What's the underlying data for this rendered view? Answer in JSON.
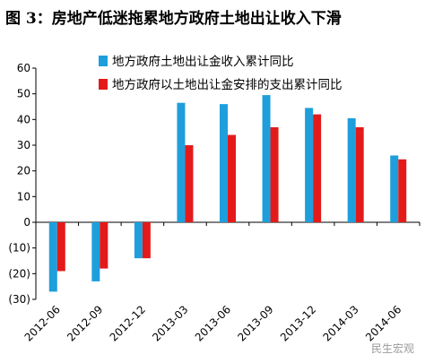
{
  "title": "图 3：房地产低迷拖累地方政府土地出让收入下滑",
  "watermark": "民生宏观",
  "chart_data": {
    "type": "bar",
    "categories": [
      "2012-06",
      "2012-09",
      "2012-12",
      "2013-03",
      "2013-06",
      "2013-09",
      "2013-12",
      "2014-03",
      "2014-06"
    ],
    "series": [
      {
        "name": "地方政府土地出让金收入累计同比",
        "color": "#1E9FDC",
        "values": [
          -27,
          -23,
          -14,
          46.5,
          46,
          49.5,
          44.5,
          40.5,
          26
        ]
      },
      {
        "name": "地方政府以土地出让金安排的支出累计同比",
        "color": "#E41A1A",
        "values": [
          -19,
          -18,
          -14,
          30,
          34,
          37,
          42,
          37,
          24.5
        ]
      }
    ],
    "ylim": [
      -30,
      60
    ],
    "yticks": [
      -30,
      -20,
      -10,
      0,
      10,
      20,
      30,
      40,
      50,
      60
    ],
    "ytick_labels": [
      "(30)",
      "(20)",
      "(10)",
      "0",
      "10",
      "20",
      "30",
      "40",
      "50",
      "60"
    ],
    "legend_position": "top",
    "grid": false
  }
}
